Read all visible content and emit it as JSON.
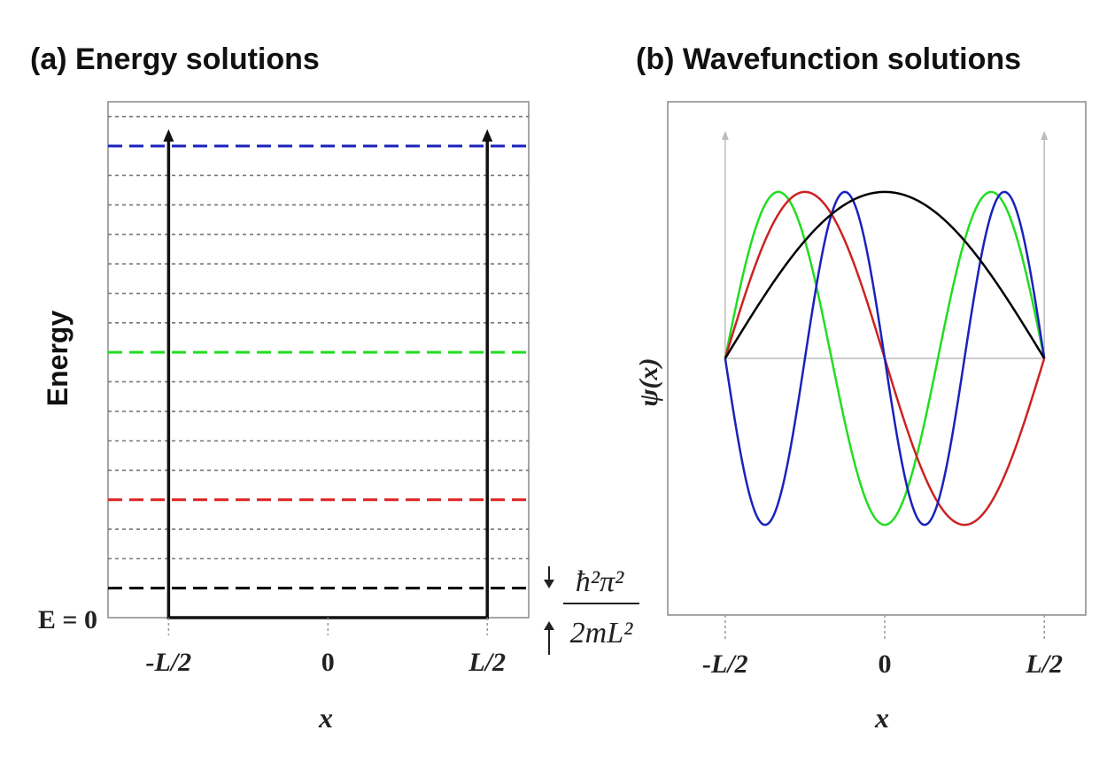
{
  "chart_data": [
    {
      "type": "line",
      "title": "(a) Energy solutions",
      "ylabel": "Energy",
      "xlabel": "x",
      "x_tick_labels": [
        "-L/2",
        "0",
        "L/2"
      ],
      "x_ticks": [
        -0.5,
        0,
        0.5
      ],
      "xlim": [
        -0.69,
        0.63
      ],
      "y_origin_label": "E = 0",
      "energy_unit_label": {
        "numerator": "ħ²π²",
        "denominator": "2mL²"
      },
      "ylim": [
        0,
        17.5
      ],
      "grid_levels": [
        1,
        2,
        3,
        4,
        5,
        6,
        7,
        8,
        9,
        10,
        11,
        12,
        13,
        14,
        15,
        16,
        17
      ],
      "levels": [
        {
          "n": 1,
          "energy": 1,
          "color": "#000000"
        },
        {
          "n": 2,
          "energy": 4,
          "color": "#dd2222"
        },
        {
          "n": 3,
          "energy": 9,
          "color": "#22dd22"
        },
        {
          "n": 4,
          "energy": 16,
          "color": "#1a22bb"
        }
      ]
    },
    {
      "type": "line",
      "title": "(b) Wavefunction solutions",
      "ylabel": "ψ(x)",
      "xlabel": "x",
      "x_tick_labels": [
        "-L/2",
        "0",
        "L/2"
      ],
      "x_ticks": [
        -0.5,
        0,
        0.5
      ],
      "xlim": [
        -0.68,
        0.63
      ],
      "ylim": [
        -1.85,
        1.85
      ],
      "series": [
        {
          "n": 1,
          "color": "#000000"
        },
        {
          "n": 2,
          "color": "#cc2222"
        },
        {
          "n": 3,
          "color": "#22dd22"
        },
        {
          "n": 4,
          "color": "#1a22bb"
        }
      ]
    }
  ]
}
